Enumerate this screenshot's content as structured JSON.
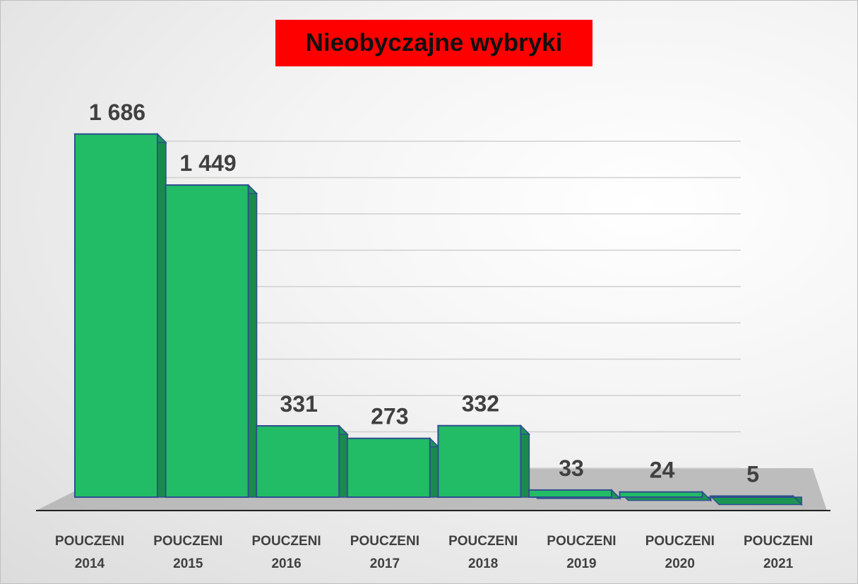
{
  "chart_data": {
    "type": "bar3d",
    "title": "Nieobyczajne wybryki",
    "categories": [
      "POUCZENI 2014",
      "POUCZENI 2015",
      "POUCZENI 2016",
      "POUCZENI 2017",
      "POUCZENI 2018",
      "POUCZENI 2019",
      "POUCZENI 2020",
      "POUCZENI 2021"
    ],
    "values": [
      1686,
      1449,
      331,
      273,
      332,
      33,
      24,
      5
    ],
    "value_labels": [
      "1 686",
      "1 449",
      "331",
      "273",
      "332",
      "33",
      "24",
      "5"
    ],
    "color": "#22bb66",
    "ylim": [
      0,
      1800
    ],
    "yticks": [
      0,
      200,
      400,
      600,
      800,
      1000,
      1200,
      1400,
      1600,
      1800
    ],
    "grid": true
  }
}
